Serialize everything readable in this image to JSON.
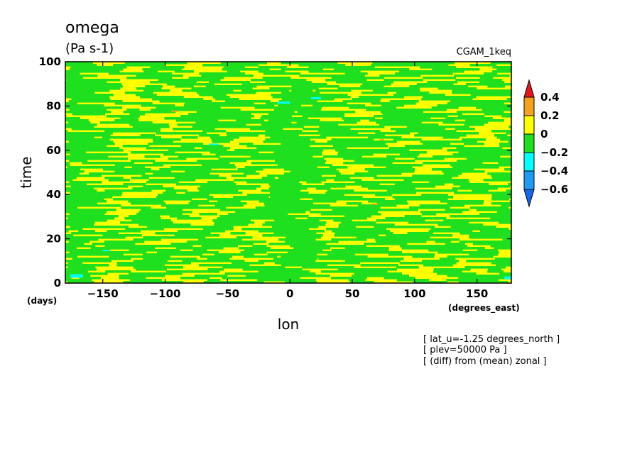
{
  "header": {
    "title": "omega",
    "units": "(Pa s-1)",
    "dataset": "CGAM_1keq"
  },
  "notes": [
    "[ lat_u=-1.25 degrees_north ]",
    "[ plev=50000 Pa ]",
    "[ (diff) from (mean) zonal ]"
  ],
  "chart_data": {
    "type": "heatmap",
    "xlabel": "lon",
    "xunit": "(degrees_east)",
    "ylabel": "time",
    "yunit": "(days)",
    "xlim": [
      -180,
      177.5
    ],
    "ylim": [
      0,
      100
    ],
    "x_ticks": [
      -150,
      -100,
      -50,
      0,
      50,
      100,
      150
    ],
    "x_tick_labels": [
      "-150",
      "-100",
      "-50",
      "0",
      "50",
      "100",
      "150"
    ],
    "y_ticks": [
      0,
      20,
      40,
      60,
      80,
      100
    ],
    "y_tick_labels": [
      "0",
      "20",
      "40",
      "60",
      "80",
      "100"
    ],
    "colorbar": {
      "levels": [
        -0.6,
        -0.4,
        -0.2,
        0,
        0.2,
        0.4
      ],
      "labels": [
        "0.4",
        "0.2",
        "0",
        "-0.2",
        "-0.4",
        "-0.6"
      ],
      "colors_top_to_bottom": [
        "#e8141a",
        "#f5a31e",
        "#ffff00",
        "#1ee01e",
        "#00ffff",
        "#1e9cf5",
        "#1464f0"
      ]
    },
    "field_colors": {
      "positive_0_0.2": "#ffff00",
      "negative_-0.2_0": "#1ee01e",
      "negative_-0.4_-0.2": "#00ffff",
      "positive_0.2_0.4": "#f5a31e"
    }
  }
}
